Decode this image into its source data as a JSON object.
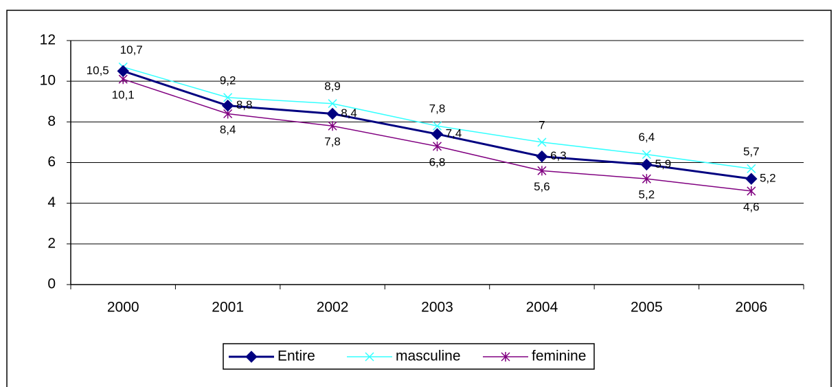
{
  "chart_data": {
    "type": "line",
    "categories": [
      "2000",
      "2001",
      "2002",
      "2003",
      "2004",
      "2005",
      "2006"
    ],
    "series": [
      {
        "name": "Entire",
        "color": "#000080",
        "marker": "diamond",
        "values": [
          10.5,
          8.8,
          8.4,
          7.4,
          6.3,
          5.9,
          5.2
        ],
        "value_labels": [
          "10,5",
          "8,8",
          "8,4",
          "7,4",
          "6,3",
          "5,9",
          "5,2"
        ]
      },
      {
        "name": "masculine",
        "color": "#33ffff",
        "marker": "x",
        "values": [
          10.7,
          9.2,
          8.9,
          7.8,
          7,
          6.4,
          5.7
        ],
        "value_labels": [
          "10,7",
          "9,2",
          "8,9",
          "7,8",
          "7",
          "6,4",
          "5,7"
        ]
      },
      {
        "name": "feminine",
        "color": "#800080",
        "marker": "star",
        "values": [
          10.1,
          8.4,
          7.8,
          6.8,
          5.6,
          5.2,
          4.6
        ],
        "value_labels": [
          "10,1",
          "8,4",
          "7,8",
          "6,8",
          "5,6",
          "5,2",
          "4,6"
        ]
      }
    ],
    "ylim": [
      0,
      12
    ],
    "yticks": [
      0,
      2,
      4,
      6,
      8,
      10,
      12
    ],
    "grid": true,
    "legend": "bottom"
  }
}
